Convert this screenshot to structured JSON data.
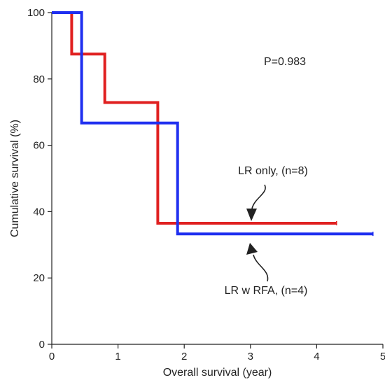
{
  "chart_data": {
    "type": "line",
    "title": "",
    "xlabel": "Overall survival (year)",
    "ylabel": "Cumulative survival (%)",
    "xlim": [
      0,
      5
    ],
    "ylim": [
      0,
      100
    ],
    "xticks": [
      "0",
      "1",
      "2",
      "3",
      "4",
      "5"
    ],
    "yticks": [
      "0",
      "20",
      "40",
      "60",
      "80",
      "100"
    ],
    "grid": false,
    "annotations": {
      "p_value": "P=0.983",
      "series_labels": [
        "LR only, (n=8)",
        "LR w RFA, (n=4)"
      ]
    },
    "series": [
      {
        "name": "LR only, (n=8)",
        "color": "#e02020",
        "step": true,
        "x": [
          0,
          0.3,
          0.3,
          0.8,
          0.8,
          1.6,
          1.6,
          4.3
        ],
        "y": [
          100,
          100,
          87.5,
          87.5,
          72.9,
          72.9,
          36.5,
          36.5
        ],
        "censored_x": [
          4.3
        ]
      },
      {
        "name": "LR w RFA, (n=4)",
        "color": "#1f2ff0",
        "step": true,
        "x": [
          0,
          0.45,
          0.45,
          1.9,
          1.9,
          4.85
        ],
        "y": [
          100,
          100,
          66.7,
          66.7,
          33.3,
          33.3
        ],
        "censored_x": [
          4.85
        ]
      }
    ]
  }
}
